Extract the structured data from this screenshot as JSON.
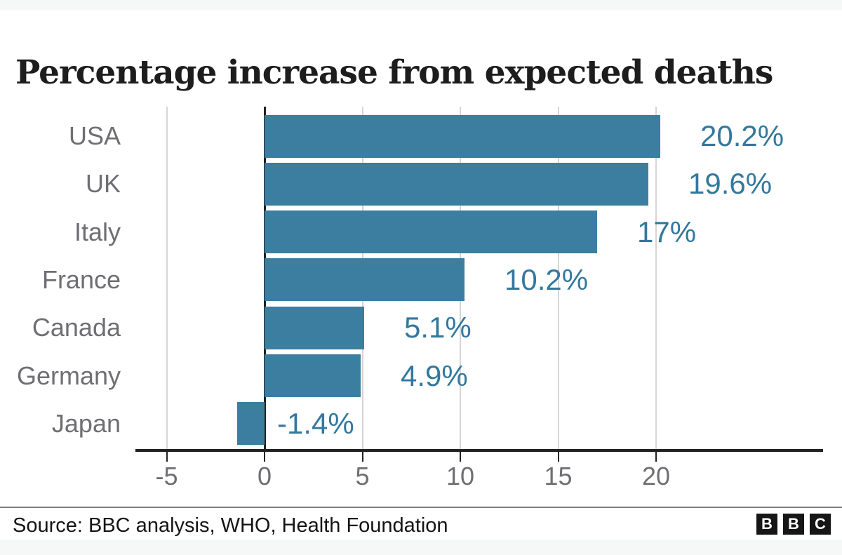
{
  "chart_data": {
    "type": "bar",
    "orientation": "horizontal",
    "title": "Percentage increase from expected deaths",
    "categories": [
      "USA",
      "UK",
      "Italy",
      "France",
      "Canada",
      "Germany",
      "Japan"
    ],
    "values": [
      20.2,
      19.6,
      17,
      10.2,
      5.1,
      4.9,
      -1.4
    ],
    "value_labels": [
      "20.2%",
      "19.6%",
      "17%",
      "10.2%",
      "5.1%",
      "4.9%",
      "-1.4%"
    ],
    "x_ticks": [
      -5,
      0,
      5,
      10,
      15,
      20
    ],
    "x_tick_labels": [
      "-5",
      "0",
      "5",
      "10",
      "15",
      "20"
    ],
    "xlim": [
      -6.6,
      28.5
    ],
    "xlabel": "",
    "ylabel": "",
    "grid": true,
    "legend": false,
    "colors": {
      "bar": "#3c7ea0",
      "value_label": "#33789e",
      "category_label": "#6e6e73",
      "tick_label": "#6e6e73",
      "axis": "#222222",
      "gridline": "#d5d5d5",
      "title": "#1d1d1d"
    }
  },
  "footer": {
    "source": "Source: BBC analysis, WHO, Health Foundation",
    "logo_letters": [
      "B",
      "B",
      "C"
    ]
  }
}
